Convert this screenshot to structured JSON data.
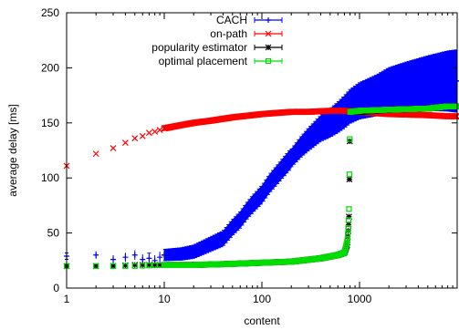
{
  "chart_data": {
    "type": "scatter",
    "title": "",
    "xlabel": "content",
    "ylabel": "average delay [ms]",
    "x_scale": "log",
    "xlim": [
      1,
      10000
    ],
    "ylim": [
      0,
      250
    ],
    "x_ticks": [
      1,
      10,
      100,
      1000
    ],
    "x_tick_labels": [
      "1",
      "10",
      "100",
      "1000"
    ],
    "y_ticks": [
      0,
      50,
      100,
      150,
      200,
      250
    ],
    "y_tick_labels": [
      "0",
      "50",
      "100",
      "150",
      "200",
      "250"
    ],
    "grid": false,
    "legend_position": "top-left",
    "series": [
      {
        "name": "CACH",
        "color": "#0000ff",
        "marker": "plus",
        "error_bars": true,
        "points": [
          [
            1,
            29
          ],
          [
            2,
            30
          ],
          [
            3,
            26
          ],
          [
            4,
            28
          ],
          [
            5,
            30
          ],
          [
            6,
            26
          ],
          [
            7,
            27
          ],
          [
            8,
            25
          ],
          [
            9,
            28
          ],
          [
            10,
            30
          ],
          [
            15,
            31
          ],
          [
            20,
            33
          ],
          [
            30,
            40
          ],
          [
            40,
            45
          ],
          [
            50,
            55
          ],
          [
            60,
            62
          ],
          [
            70,
            70
          ],
          [
            80,
            76
          ],
          [
            100,
            85
          ],
          [
            120,
            95
          ],
          [
            150,
            105
          ],
          [
            200,
            118
          ],
          [
            250,
            128
          ],
          [
            300,
            135
          ],
          [
            400,
            145
          ],
          [
            500,
            150
          ],
          [
            600,
            155
          ],
          [
            700,
            160
          ],
          [
            800,
            165
          ],
          [
            1000,
            170
          ],
          [
            1500,
            175
          ],
          [
            2000,
            180
          ],
          [
            3000,
            183
          ],
          [
            5000,
            186
          ],
          [
            8000,
            188
          ]
        ],
        "error_band_half_width": [
          [
            1000,
            20
          ],
          [
            3000,
            25
          ],
          [
            8000,
            30
          ]
        ]
      },
      {
        "name": "on-path",
        "color": "#ff0000",
        "marker": "x",
        "points": [
          [
            1,
            111
          ],
          [
            2,
            122
          ],
          [
            3,
            127
          ],
          [
            4,
            132
          ],
          [
            5,
            136
          ],
          [
            6,
            138
          ],
          [
            7,
            141
          ],
          [
            8,
            142
          ],
          [
            10,
            145
          ],
          [
            15,
            148
          ],
          [
            20,
            150
          ],
          [
            30,
            152
          ],
          [
            50,
            155
          ],
          [
            80,
            157
          ],
          [
            100,
            158
          ],
          [
            200,
            160
          ],
          [
            300,
            160
          ],
          [
            500,
            161
          ],
          [
            700,
            161
          ],
          [
            1000,
            160
          ],
          [
            2000,
            158
          ],
          [
            5000,
            157
          ],
          [
            8000,
            156
          ]
        ]
      },
      {
        "name": "popularity estimator",
        "color": "#000000",
        "marker": "star",
        "points": [
          [
            1,
            20
          ],
          [
            2,
            20
          ],
          [
            3,
            20
          ],
          [
            5,
            21
          ],
          [
            10,
            21
          ],
          [
            20,
            21
          ],
          [
            50,
            22
          ],
          [
            100,
            23
          ],
          [
            200,
            24
          ],
          [
            400,
            27
          ],
          [
            600,
            30
          ],
          [
            700,
            32
          ],
          [
            750,
            40
          ],
          [
            760,
            48
          ],
          [
            770,
            55
          ],
          [
            780,
            65
          ],
          [
            800,
            160
          ],
          [
            1000,
            160
          ],
          [
            2000,
            162
          ],
          [
            5000,
            163
          ],
          [
            8000,
            165
          ]
        ]
      },
      {
        "name": "optimal placement",
        "color": "#00dd00",
        "marker": "square",
        "points": [
          [
            1,
            20
          ],
          [
            2,
            20
          ],
          [
            3,
            20
          ],
          [
            5,
            20
          ],
          [
            10,
            21
          ],
          [
            20,
            21
          ],
          [
            50,
            22
          ],
          [
            100,
            23
          ],
          [
            200,
            24
          ],
          [
            400,
            27
          ],
          [
            600,
            30
          ],
          [
            700,
            32
          ],
          [
            750,
            43
          ],
          [
            760,
            50
          ],
          [
            770,
            58
          ],
          [
            780,
            72
          ],
          [
            800,
            160
          ],
          [
            1000,
            161
          ],
          [
            2000,
            162
          ],
          [
            5000,
            163
          ],
          [
            8000,
            165
          ]
        ]
      }
    ]
  }
}
